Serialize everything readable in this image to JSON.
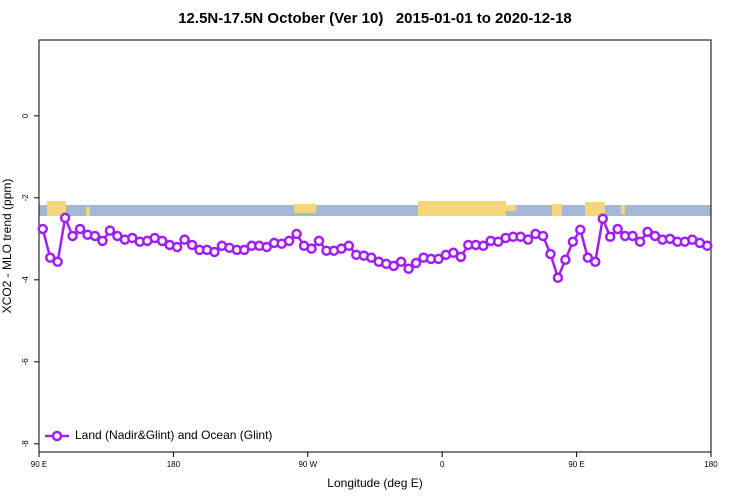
{
  "chart_data": {
    "type": "line",
    "title": "12.5N-17.5N October (Ver 10)   2015-01-01 to 2020-12-18",
    "xlabel": "Longitude (deg E)",
    "ylabel": "XCO2 - MLO trend (ppm)",
    "xlim": [
      90,
      540
    ],
    "xticks": [
      {
        "value": 90,
        "label": "90 E"
      },
      180,
      {
        "value": 270,
        "label": "90 W"
      },
      {
        "value": 360,
        "label": "0"
      },
      {
        "value": 450,
        "label": "90 E"
      },
      {
        "value": 540,
        "label": "180"
      }
    ],
    "ylim": [
      -8.2,
      1.85
    ],
    "yticks": [
      0,
      -2,
      -4,
      -6,
      -8
    ],
    "legend": "bottom-left",
    "x": [
      92.5,
      97.5,
      102.5,
      107.5,
      112.5,
      117.5,
      122.5,
      127.5,
      132.5,
      137.5,
      142.5,
      147.5,
      152.5,
      157.5,
      162.5,
      167.5,
      172.5,
      177.5,
      182.5,
      187.5,
      192.5,
      197.5,
      202.5,
      207.5,
      212.5,
      217.5,
      222.5,
      227.5,
      232.5,
      237.5,
      242.5,
      247.5,
      252.5,
      257.5,
      262.5,
      267.5,
      272.5,
      277.5,
      282.5,
      287.5,
      292.5,
      297.5,
      302.5,
      307.5,
      312.5,
      317.5,
      322.5,
      327.5,
      332.5,
      337.5,
      342.5,
      347.5,
      352.5,
      357.5,
      362.5,
      367.5,
      372.5,
      377.5,
      382.5,
      387.5,
      392.5,
      397.5,
      402.5,
      407.5,
      412.5,
      417.5,
      422.5,
      427.5,
      432.5,
      437.5,
      442.5,
      447.5,
      452.5,
      457.5,
      462.5,
      467.5,
      472.5,
      477.5,
      482.5,
      487.5,
      492.5,
      497.5,
      502.5,
      507.5,
      512.5,
      517.5,
      522.5,
      527.5,
      532.5,
      537.5
    ],
    "series": [
      {
        "name": "Land (Nadir&Glint) and Ocean (Glint)",
        "color": "#a020f0",
        "values": [
          -2.76,
          -3.46,
          -3.56,
          -2.49,
          -2.93,
          -2.76,
          -2.9,
          -2.93,
          -3.05,
          -2.8,
          -2.93,
          -3.02,
          -2.98,
          -3.07,
          -3.05,
          -2.98,
          -3.05,
          -3.15,
          -3.2,
          -3.02,
          -3.15,
          -3.27,
          -3.27,
          -3.32,
          -3.17,
          -3.22,
          -3.27,
          -3.27,
          -3.17,
          -3.17,
          -3.2,
          -3.1,
          -3.12,
          -3.05,
          -2.88,
          -3.17,
          -3.24,
          -3.05,
          -3.29,
          -3.29,
          -3.24,
          -3.17,
          -3.39,
          -3.41,
          -3.46,
          -3.56,
          -3.61,
          -3.66,
          -3.56,
          -3.73,
          -3.59,
          -3.46,
          -3.49,
          -3.49,
          -3.39,
          -3.34,
          -3.44,
          -3.15,
          -3.15,
          -3.17,
          -3.05,
          -3.07,
          -2.98,
          -2.95,
          -2.95,
          -3.02,
          -2.88,
          -2.93,
          -3.37,
          -3.95,
          -3.51,
          -3.07,
          -2.78,
          -3.46,
          -3.56,
          -2.51,
          -2.95,
          -2.76,
          -2.93,
          -2.93,
          -3.07,
          -2.83,
          -2.93,
          -3.02,
          -3.0,
          -3.07,
          -3.07,
          -3.02,
          -3.1,
          -3.17
        ]
      }
    ]
  }
}
